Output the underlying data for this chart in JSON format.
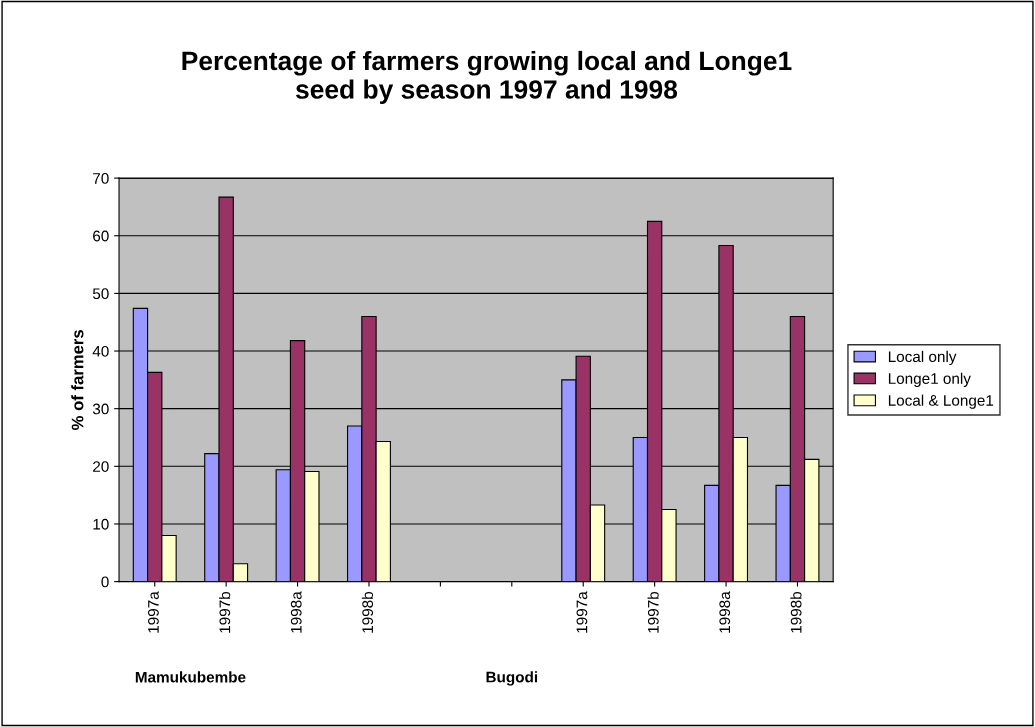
{
  "chart_data": {
    "type": "bar",
    "title": "Percentage of farmers growing local and Longe1\nseed by season 1997 and 1998",
    "ylabel": "% of farmers",
    "categories": [
      "1997a",
      "1997b",
      "1998a",
      "1998b",
      null,
      null,
      "1997a",
      "1997b",
      "1998a",
      "1998b"
    ],
    "series": [
      {
        "name": "Local only",
        "color": "#9999ff",
        "values": [
          47.4,
          22.2,
          19.4,
          27.0,
          null,
          null,
          35.0,
          25.0,
          16.7,
          16.7
        ]
      },
      {
        "name": "Longe1 only",
        "color": "#993366",
        "values": [
          36.3,
          66.7,
          41.8,
          46.0,
          null,
          null,
          39.1,
          62.5,
          58.3,
          46.0
        ]
      },
      {
        "name": "Local & Longe1",
        "color": "#ffffcc",
        "values": [
          8.0,
          3.1,
          19.1,
          24.3,
          null,
          null,
          13.3,
          12.5,
          25.0,
          21.2
        ]
      }
    ],
    "ylim": [
      0,
      70
    ],
    "yticks": [
      0,
      10,
      20,
      30,
      40,
      50,
      60,
      70
    ],
    "grid": "y",
    "legend": "right",
    "annotations": [
      "Mamukubembe",
      "Bugodi"
    ]
  }
}
